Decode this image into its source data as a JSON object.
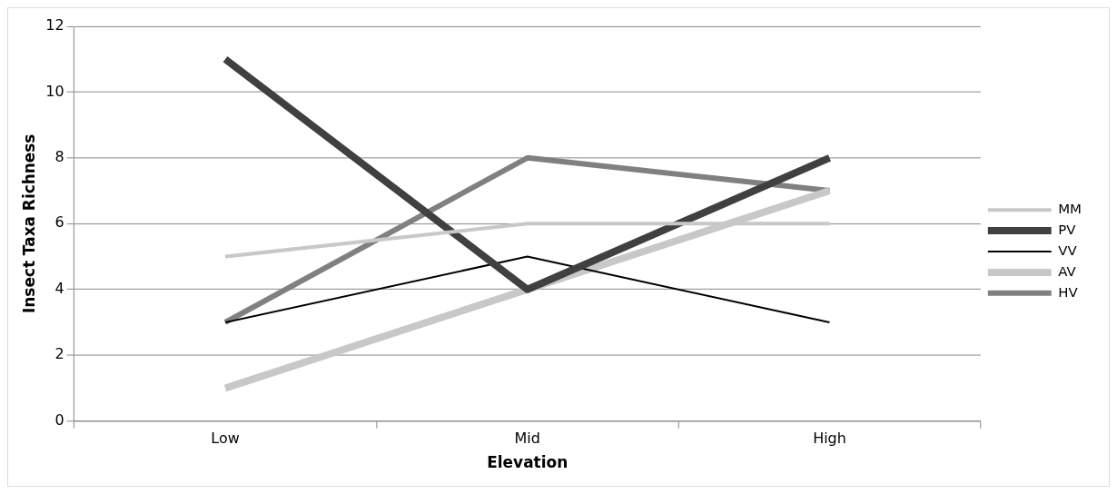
{
  "chart_data": {
    "type": "line",
    "xlabel": "Elevation",
    "ylabel": "Insect Taxa Richness",
    "categories": [
      "Low",
      "Mid",
      "High"
    ],
    "series": [
      {
        "name": "MM",
        "color": "#c8c8c8",
        "values": [
          5,
          6,
          6
        ]
      },
      {
        "name": "PV",
        "color": "#404040",
        "values": [
          11,
          4,
          8
        ]
      },
      {
        "name": "VV",
        "color": "#000000",
        "values": [
          3,
          5,
          3
        ]
      },
      {
        "name": "AV",
        "color": "#c8c8c8",
        "values": [
          1,
          4,
          7
        ]
      },
      {
        "name": "HV",
        "color": "#808080",
        "values": [
          3,
          8,
          7
        ]
      }
    ],
    "ylim": [
      0,
      12
    ],
    "yticks": [
      0,
      2,
      4,
      6,
      8,
      10,
      12
    ],
    "grid": "y",
    "legend": "right",
    "marker": "none",
    "line_style": "solid"
  }
}
